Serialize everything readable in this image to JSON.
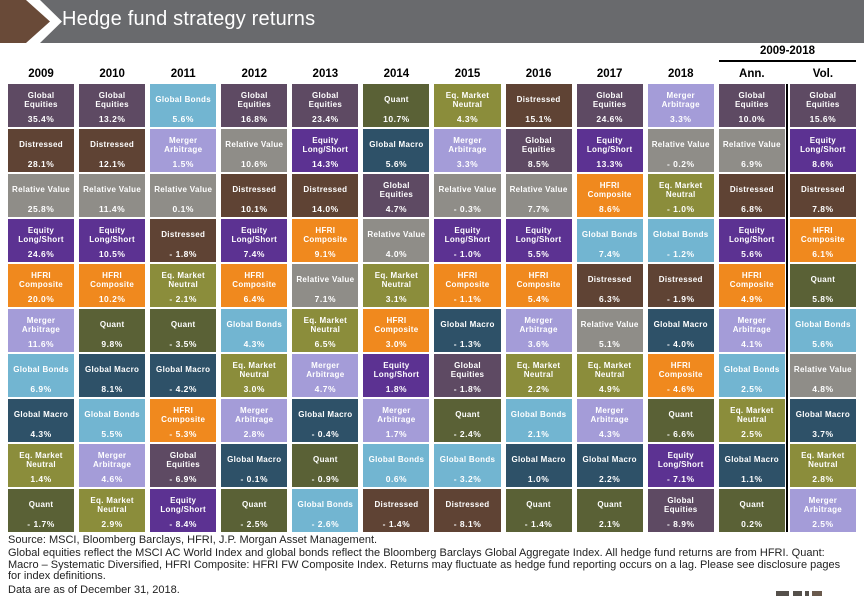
{
  "header": {
    "title": "Hedge fund strategy returns"
  },
  "group": {
    "label": "2009-2018"
  },
  "theme": {
    "titlebar_bg": "#696a6d",
    "chevron_brown": "#694a38",
    "divider": "#000000",
    "tile_text": "#ffffff"
  },
  "footer": {
    "source": "Source: MSCI, Bloomberg Barclays, HFRI, J.P. Morgan Asset Management.",
    "note": "Global equities reflect the MSCI AC World Index and global bonds reflect the Bloomberg Barclays Global Aggregate Index. All hedge fund returns are from HFRI. Quant: Macro – Systematic Diversified, HFRI Composite: HFRI FW Composite Index. Returns may fluctuate as hedge fund reporting occurs on a lag. Please see disclosure pages for index definitions.",
    "as_of": "Data are as of December 31, 2018."
  },
  "chart_data": {
    "type": "table",
    "title": "Hedge fund strategy returns",
    "group_header": {
      "label": "2009-2018",
      "applies_to": [
        "Ann.",
        "Vol."
      ]
    },
    "palette": {
      "Global Equities": "#5e4a63",
      "Distressed": "#5f4334",
      "Relative Value": "#8f8d88",
      "Equity Long/Short": "#5c3292",
      "HFRI Composite": "#f0891e",
      "Merger Arbitrage": "#a49cd8",
      "Global Bonds": "#72b5d1",
      "Global Macro": "#2e5168",
      "Eq. Market Neutral": "#8b8d3b",
      "Quant": "#5a6136"
    },
    "columns": [
      {
        "label": "2009",
        "cells": [
          {
            "strategy": "Global Equities",
            "value": 35.4,
            "display": "35.4%"
          },
          {
            "strategy": "Distressed",
            "value": 28.1,
            "display": "28.1%"
          },
          {
            "strategy": "Relative Value",
            "value": 25.8,
            "display": "25.8%"
          },
          {
            "strategy": "Equity Long/Short",
            "value": 24.6,
            "display": "24.6%"
          },
          {
            "strategy": "HFRI Composite",
            "value": 20.0,
            "display": "20.0%"
          },
          {
            "strategy": "Merger Arbitrage",
            "value": 11.6,
            "display": "11.6%"
          },
          {
            "strategy": "Global Bonds",
            "value": 6.9,
            "display": "6.9%"
          },
          {
            "strategy": "Global Macro",
            "value": 4.3,
            "display": "4.3%"
          },
          {
            "strategy": "Eq. Market Neutral",
            "value": 1.4,
            "display": "1.4%"
          },
          {
            "strategy": "Quant",
            "value": -1.7,
            "display": "- 1.7%"
          }
        ]
      },
      {
        "label": "2010",
        "cells": [
          {
            "strategy": "Global Equities",
            "value": 13.2,
            "display": "13.2%"
          },
          {
            "strategy": "Distressed",
            "value": 12.1,
            "display": "12.1%"
          },
          {
            "strategy": "Relative Value",
            "value": 11.4,
            "display": "11.4%"
          },
          {
            "strategy": "Equity Long/Short",
            "value": 10.5,
            "display": "10.5%"
          },
          {
            "strategy": "HFRI Composite",
            "value": 10.2,
            "display": "10.2%"
          },
          {
            "strategy": "Quant",
            "value": 9.8,
            "display": "9.8%"
          },
          {
            "strategy": "Global Macro",
            "value": 8.1,
            "display": "8.1%"
          },
          {
            "strategy": "Global Bonds",
            "value": 5.5,
            "display": "5.5%"
          },
          {
            "strategy": "Merger Arbitrage",
            "value": 4.6,
            "display": "4.6%"
          },
          {
            "strategy": "Eq. Market Neutral",
            "value": 2.9,
            "display": "2.9%"
          }
        ]
      },
      {
        "label": "2011",
        "cells": [
          {
            "strategy": "Global Bonds",
            "value": 5.6,
            "display": "5.6%"
          },
          {
            "strategy": "Merger Arbitrage",
            "value": 1.5,
            "display": "1.5%"
          },
          {
            "strategy": "Relative Value",
            "value": 0.1,
            "display": "0.1%"
          },
          {
            "strategy": "Distressed",
            "value": -1.8,
            "display": "- 1.8%"
          },
          {
            "strategy": "Eq. Market Neutral",
            "value": -2.1,
            "display": "- 2.1%"
          },
          {
            "strategy": "Quant",
            "value": -3.5,
            "display": "- 3.5%"
          },
          {
            "strategy": "Global Macro",
            "value": -4.2,
            "display": "- 4.2%"
          },
          {
            "strategy": "HFRI Composite",
            "value": -5.3,
            "display": "- 5.3%"
          },
          {
            "strategy": "Global Equities",
            "value": -6.9,
            "display": "- 6.9%"
          },
          {
            "strategy": "Equity Long/Short",
            "value": -8.4,
            "display": "- 8.4%"
          }
        ]
      },
      {
        "label": "2012",
        "cells": [
          {
            "strategy": "Global Equities",
            "value": 16.8,
            "display": "16.8%"
          },
          {
            "strategy": "Relative Value",
            "value": 10.6,
            "display": "10.6%"
          },
          {
            "strategy": "Distressed",
            "value": 10.1,
            "display": "10.1%"
          },
          {
            "strategy": "Equity Long/Short",
            "value": 7.4,
            "display": "7.4%"
          },
          {
            "strategy": "HFRI Composite",
            "value": 6.4,
            "display": "6.4%"
          },
          {
            "strategy": "Global Bonds",
            "value": 4.3,
            "display": "4.3%"
          },
          {
            "strategy": "Eq. Market Neutral",
            "value": 3.0,
            "display": "3.0%"
          },
          {
            "strategy": "Merger Arbitrage",
            "value": 2.8,
            "display": "2.8%"
          },
          {
            "strategy": "Global Macro",
            "value": -0.1,
            "display": "- 0.1%"
          },
          {
            "strategy": "Quant",
            "value": -2.5,
            "display": "- 2.5%"
          }
        ]
      },
      {
        "label": "2013",
        "cells": [
          {
            "strategy": "Global Equities",
            "value": 23.4,
            "display": "23.4%"
          },
          {
            "strategy": "Equity Long/Short",
            "value": 14.3,
            "display": "14.3%"
          },
          {
            "strategy": "Distressed",
            "value": 14.0,
            "display": "14.0%"
          },
          {
            "strategy": "HFRI Composite",
            "value": 9.1,
            "display": "9.1%"
          },
          {
            "strategy": "Relative Value",
            "value": 7.1,
            "display": "7.1%"
          },
          {
            "strategy": "Eq. Market Neutral",
            "value": 6.5,
            "display": "6.5%"
          },
          {
            "strategy": "Merger Arbitrage",
            "value": 4.7,
            "display": "4.7%"
          },
          {
            "strategy": "Global Macro",
            "value": -0.4,
            "display": "- 0.4%"
          },
          {
            "strategy": "Quant",
            "value": -0.9,
            "display": "- 0.9%"
          },
          {
            "strategy": "Global Bonds",
            "value": -2.6,
            "display": "- 2.6%"
          }
        ]
      },
      {
        "label": "2014",
        "cells": [
          {
            "strategy": "Quant",
            "value": 10.7,
            "display": "10.7%"
          },
          {
            "strategy": "Global Macro",
            "value": 5.6,
            "display": "5.6%"
          },
          {
            "strategy": "Global Equities",
            "value": 4.7,
            "display": "4.7%"
          },
          {
            "strategy": "Relative Value",
            "value": 4.0,
            "display": "4.0%"
          },
          {
            "strategy": "Eq. Market Neutral",
            "value": 3.1,
            "display": "3.1%"
          },
          {
            "strategy": "HFRI Composite",
            "value": 3.0,
            "display": "3.0%"
          },
          {
            "strategy": "Equity Long/Short",
            "value": 1.8,
            "display": "1.8%"
          },
          {
            "strategy": "Merger Arbitrage",
            "value": 1.7,
            "display": "1.7%"
          },
          {
            "strategy": "Global Bonds",
            "value": 0.6,
            "display": "0.6%"
          },
          {
            "strategy": "Distressed",
            "value": -1.4,
            "display": "- 1.4%"
          }
        ]
      },
      {
        "label": "2015",
        "cells": [
          {
            "strategy": "Eq. Market Neutral",
            "value": 4.3,
            "display": "4.3%"
          },
          {
            "strategy": "Merger Arbitrage",
            "value": 3.3,
            "display": "3.3%"
          },
          {
            "strategy": "Relative Value",
            "value": -0.3,
            "display": "- 0.3%"
          },
          {
            "strategy": "Equity Long/Short",
            "value": -1.0,
            "display": "- 1.0%"
          },
          {
            "strategy": "HFRI Composite",
            "value": -1.1,
            "display": "- 1.1%"
          },
          {
            "strategy": "Global Macro",
            "value": -1.3,
            "display": "- 1.3%"
          },
          {
            "strategy": "Global Equities",
            "value": -1.8,
            "display": "- 1.8%"
          },
          {
            "strategy": "Quant",
            "value": -2.4,
            "display": "- 2.4%"
          },
          {
            "strategy": "Global Bonds",
            "value": -3.2,
            "display": "- 3.2%"
          },
          {
            "strategy": "Distressed",
            "value": -8.1,
            "display": "- 8.1%"
          }
        ]
      },
      {
        "label": "2016",
        "cells": [
          {
            "strategy": "Distressed",
            "value": 15.1,
            "display": "15.1%"
          },
          {
            "strategy": "Global Equities",
            "value": 8.5,
            "display": "8.5%"
          },
          {
            "strategy": "Relative Value",
            "value": 7.7,
            "display": "7.7%"
          },
          {
            "strategy": "Equity Long/Short",
            "value": 5.5,
            "display": "5.5%"
          },
          {
            "strategy": "HFRI Composite",
            "value": 5.4,
            "display": "5.4%"
          },
          {
            "strategy": "Merger Arbitrage",
            "value": 3.6,
            "display": "3.6%"
          },
          {
            "strategy": "Eq. Market Neutral",
            "value": 2.2,
            "display": "2.2%"
          },
          {
            "strategy": "Global Bonds",
            "value": 2.1,
            "display": "2.1%"
          },
          {
            "strategy": "Global Macro",
            "value": 1.0,
            "display": "1.0%"
          },
          {
            "strategy": "Quant",
            "value": -1.4,
            "display": "- 1.4%"
          }
        ]
      },
      {
        "label": "2017",
        "cells": [
          {
            "strategy": "Global Equities",
            "value": 24.6,
            "display": "24.6%"
          },
          {
            "strategy": "Equity Long/Short",
            "value": 13.3,
            "display": "13.3%"
          },
          {
            "strategy": "HFRI Composite",
            "value": 8.6,
            "display": "8.6%"
          },
          {
            "strategy": "Global Bonds",
            "value": 7.4,
            "display": "7.4%"
          },
          {
            "strategy": "Distressed",
            "value": 6.3,
            "display": "6.3%"
          },
          {
            "strategy": "Relative Value",
            "value": 5.1,
            "display": "5.1%"
          },
          {
            "strategy": "Eq. Market Neutral",
            "value": 4.9,
            "display": "4.9%"
          },
          {
            "strategy": "Merger Arbitrage",
            "value": 4.3,
            "display": "4.3%"
          },
          {
            "strategy": "Global Macro",
            "value": 2.2,
            "display": "2.2%"
          },
          {
            "strategy": "Quant",
            "value": 2.1,
            "display": "2.1%"
          }
        ]
      },
      {
        "label": "2018",
        "cells": [
          {
            "strategy": "Merger Arbitrage",
            "value": 3.3,
            "display": "3.3%"
          },
          {
            "strategy": "Relative Value",
            "value": -0.2,
            "display": "- 0.2%"
          },
          {
            "strategy": "Eq. Market Neutral",
            "value": -1.0,
            "display": "- 1.0%"
          },
          {
            "strategy": "Global Bonds",
            "value": -1.2,
            "display": "- 1.2%"
          },
          {
            "strategy": "Distressed",
            "value": -1.9,
            "display": "- 1.9%"
          },
          {
            "strategy": "Global Macro",
            "value": -4.0,
            "display": "- 4.0%"
          },
          {
            "strategy": "HFRI Composite",
            "value": -4.6,
            "display": "- 4.6%"
          },
          {
            "strategy": "Quant",
            "value": -6.6,
            "display": "- 6.6%"
          },
          {
            "strategy": "Equity Long/Short",
            "value": -7.1,
            "display": "- 7.1%"
          },
          {
            "strategy": "Global Equities",
            "value": -8.9,
            "display": "- 8.9%"
          }
        ]
      },
      {
        "label": "Ann.",
        "cells": [
          {
            "strategy": "Global Equities",
            "value": 10.0,
            "display": "10.0%"
          },
          {
            "strategy": "Relative Value",
            "value": 6.9,
            "display": "6.9%"
          },
          {
            "strategy": "Distressed",
            "value": 6.8,
            "display": "6.8%"
          },
          {
            "strategy": "Equity Long/Short",
            "value": 5.6,
            "display": "5.6%"
          },
          {
            "strategy": "HFRI Composite",
            "value": 4.9,
            "display": "4.9%"
          },
          {
            "strategy": "Merger Arbitrage",
            "value": 4.1,
            "display": "4.1%"
          },
          {
            "strategy": "Global Bonds",
            "value": 2.5,
            "display": "2.5%"
          },
          {
            "strategy": "Eq. Market Neutral",
            "value": 2.5,
            "display": "2.5%"
          },
          {
            "strategy": "Global Macro",
            "value": 1.1,
            "display": "1.1%"
          },
          {
            "strategy": "Quant",
            "value": 0.2,
            "display": "0.2%"
          }
        ]
      },
      {
        "label": "Vol.",
        "cells": [
          {
            "strategy": "Global Equities",
            "value": 15.6,
            "display": "15.6%"
          },
          {
            "strategy": "Equity Long/Short",
            "value": 8.6,
            "display": "8.6%"
          },
          {
            "strategy": "Distressed",
            "value": 7.8,
            "display": "7.8%"
          },
          {
            "strategy": "HFRI Composite",
            "value": 6.1,
            "display": "6.1%"
          },
          {
            "strategy": "Quant",
            "value": 5.8,
            "display": "5.8%"
          },
          {
            "strategy": "Global Bonds",
            "value": 5.6,
            "display": "5.6%"
          },
          {
            "strategy": "Relative Value",
            "value": 4.8,
            "display": "4.8%"
          },
          {
            "strategy": "Global Macro",
            "value": 3.7,
            "display": "3.7%"
          },
          {
            "strategy": "Eq. Market Neutral",
            "value": 2.8,
            "display": "2.8%"
          },
          {
            "strategy": "Merger Arbitrage",
            "value": 2.5,
            "display": "2.5%"
          }
        ]
      }
    ]
  }
}
